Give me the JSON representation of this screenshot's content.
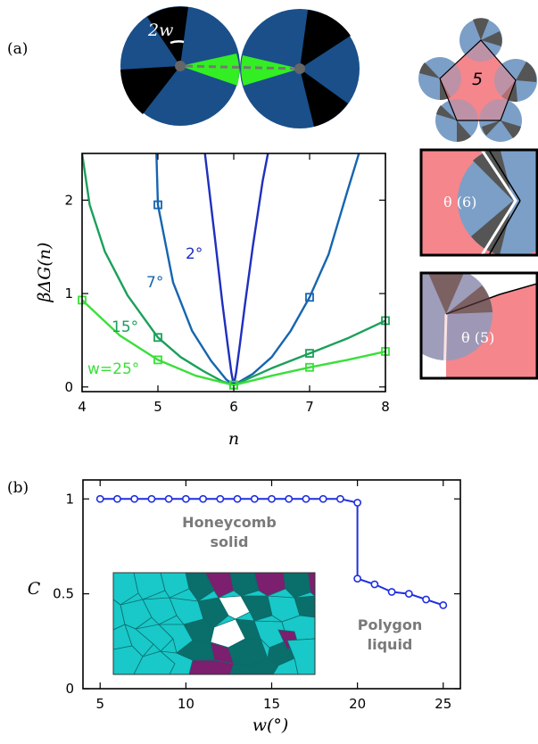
{
  "panel_labels": {
    "a": "(a)",
    "b": "(b)"
  },
  "illustrations": {
    "particle_width_label": "2w",
    "pentagon_label": "5",
    "inset_angle_6": "θ (6)",
    "inset_angle_5": "θ (5)"
  },
  "colors": {
    "particle_blue": "#1a4f8a",
    "patch_green": "#33ee22",
    "particle_light_blue": "#7b9fc7",
    "polygon_pink": "#f4868c",
    "curve_w2": "#1f2fbf",
    "curve_w7": "#1565b0",
    "curve_w15": "#1aa05a",
    "curve_w25": "#3adf3a",
    "panel_b_line": "#1f2fe0",
    "tile_cyan": "#19c8c8",
    "tile_teal": "#0a6e6a",
    "tile_purple": "#7b1f6e"
  },
  "chart_data": [
    {
      "type": "line",
      "xlabel": "n",
      "ylabel": "βΔG(n)",
      "xlim": [
        4,
        8
      ],
      "ylim": [
        -0.05,
        2.5
      ],
      "xticks": [
        4,
        5,
        6,
        7,
        8
      ],
      "yticks": [
        0,
        1,
        2
      ],
      "grid": false,
      "series": [
        {
          "name": "2°",
          "color": "#1f2fbf",
          "x": [
            5.62,
            5.75,
            5.85,
            5.92,
            5.97,
            6.0,
            6.03,
            6.08,
            6.15,
            6.25,
            6.38,
            6.45
          ],
          "y": [
            2.5,
            1.6,
            0.9,
            0.45,
            0.15,
            0.02,
            0.15,
            0.45,
            0.9,
            1.5,
            2.2,
            2.5
          ],
          "markers_x": [
            6
          ],
          "markers_y": [
            0.02
          ]
        },
        {
          "name": "7°",
          "color": "#1565b0",
          "x": [
            4.98,
            5.0,
            5.2,
            5.45,
            5.7,
            5.9,
            6.0,
            6.25,
            6.5,
            6.75,
            7.0,
            7.25,
            7.5,
            7.65
          ],
          "y": [
            2.5,
            1.95,
            1.12,
            0.6,
            0.28,
            0.08,
            0.02,
            0.14,
            0.32,
            0.6,
            0.96,
            1.42,
            2.1,
            2.5
          ],
          "markers_x": [
            5,
            6,
            7
          ],
          "markers_y": [
            1.95,
            0.02,
            0.96
          ]
        },
        {
          "name": "15°",
          "color": "#1aa05a",
          "x": [
            4.0,
            4.1,
            4.3,
            4.6,
            5.0,
            5.3,
            5.6,
            5.85,
            6.0,
            6.5,
            7.0,
            7.5,
            8.0
          ],
          "y": [
            2.5,
            1.95,
            1.45,
            0.98,
            0.53,
            0.32,
            0.17,
            0.06,
            0.02,
            0.2,
            0.36,
            0.52,
            0.71
          ],
          "markers_x": [
            5,
            6,
            7,
            8
          ],
          "markers_y": [
            0.53,
            0.02,
            0.36,
            0.71
          ]
        },
        {
          "name": "w=25°",
          "color": "#3adf3a",
          "x": [
            4.0,
            4.5,
            5.0,
            5.5,
            6.0,
            6.5,
            7.0,
            7.5,
            8.0
          ],
          "y": [
            0.93,
            0.55,
            0.29,
            0.12,
            0.02,
            0.12,
            0.21,
            0.29,
            0.38
          ],
          "markers_x": [
            4,
            5,
            6,
            7,
            8
          ],
          "markers_y": [
            0.93,
            0.29,
            0.02,
            0.21,
            0.38
          ]
        }
      ]
    },
    {
      "type": "line",
      "xlabel": "w(°)",
      "ylabel": "C",
      "xlim": [
        4,
        26
      ],
      "ylim": [
        0,
        1.1
      ],
      "xticks": [
        5,
        10,
        15,
        20,
        25
      ],
      "yticks": [
        0,
        0.5,
        1
      ],
      "grid": false,
      "annotations": [
        "Honeycomb",
        "solid",
        "Polygon",
        "liquid"
      ],
      "series": [
        {
          "color": "#1f2fe0",
          "x": [
            5,
            6,
            7,
            8,
            9,
            10,
            11,
            12,
            13,
            14,
            15,
            16,
            17,
            18,
            19,
            20,
            20,
            21,
            22,
            23,
            24,
            25
          ],
          "y": [
            1.0,
            1.0,
            1.0,
            1.0,
            1.0,
            1.0,
            1.0,
            1.0,
            1.0,
            1.0,
            1.0,
            1.0,
            1.0,
            1.0,
            1.0,
            0.98,
            0.58,
            0.55,
            0.51,
            0.5,
            0.47,
            0.44
          ]
        }
      ]
    }
  ]
}
